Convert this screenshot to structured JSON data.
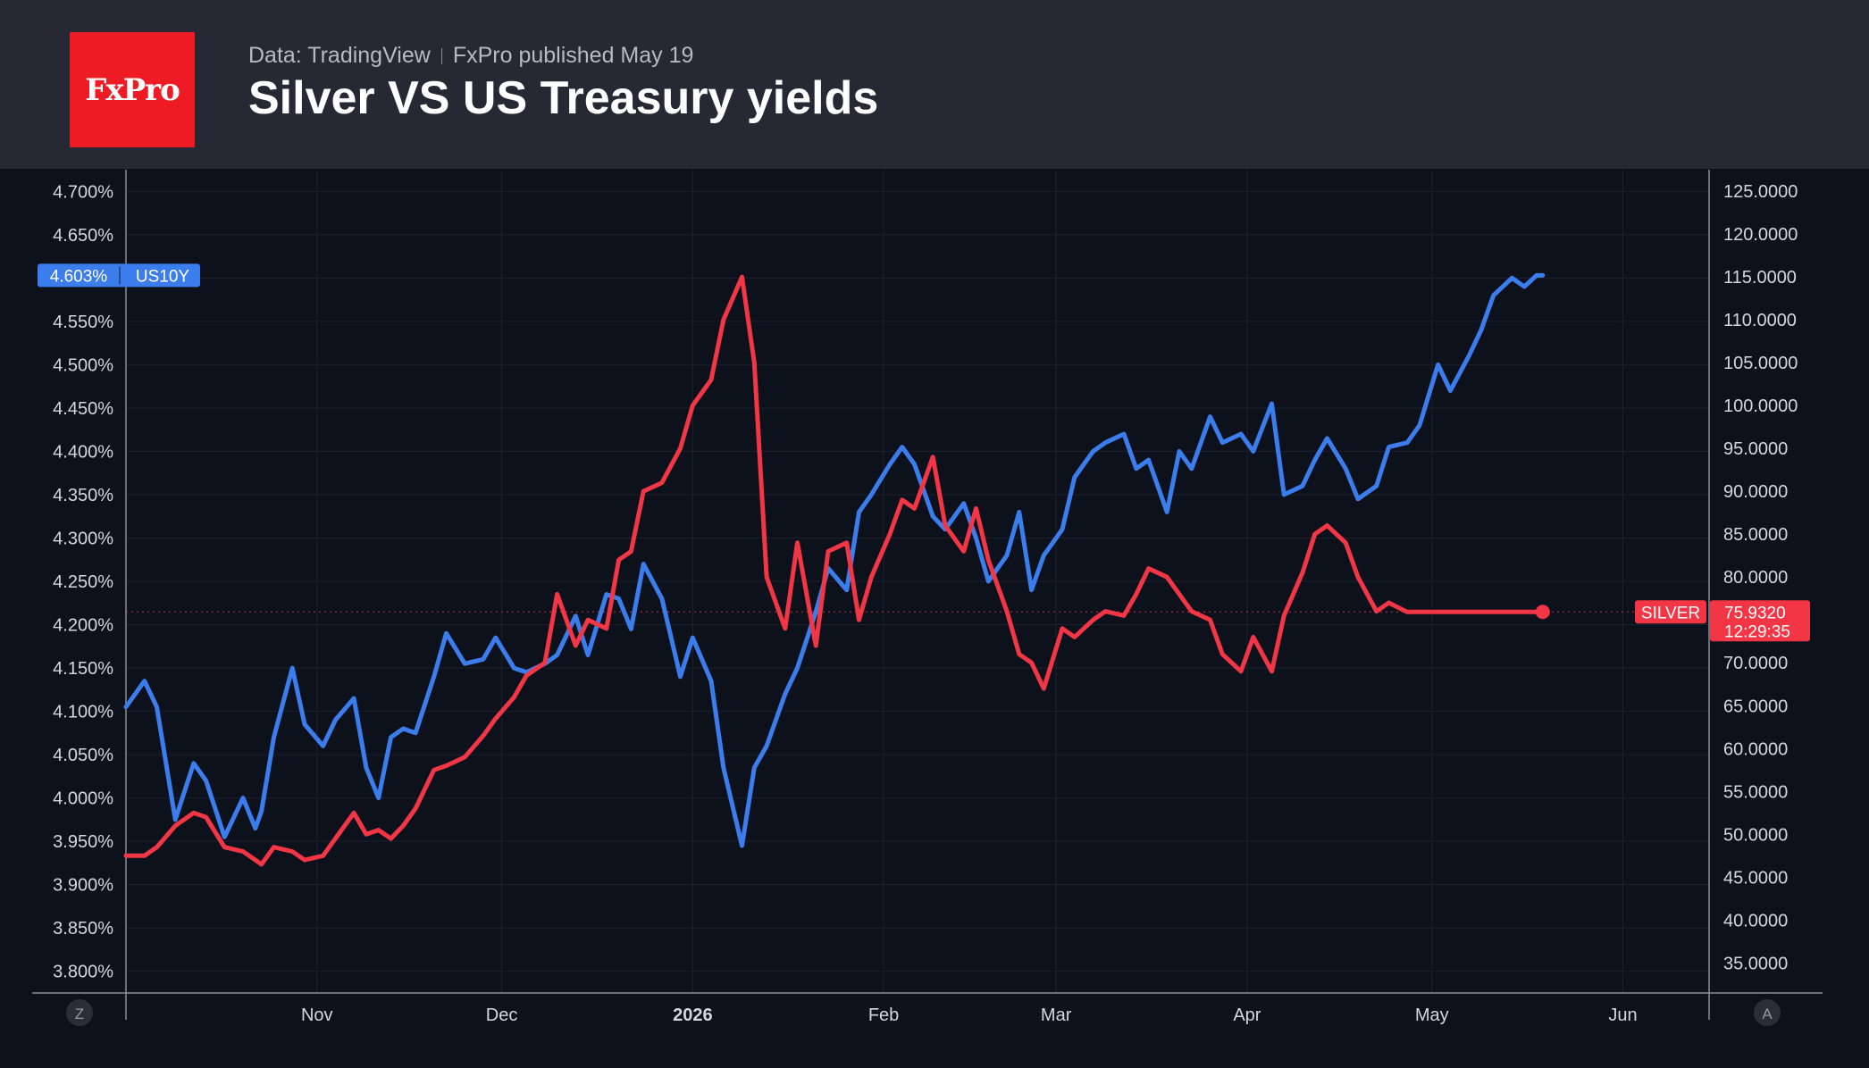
{
  "header": {
    "logo_text": "FxPro",
    "source": "Data: TradingView",
    "published": "FxPro published May 19",
    "title": "Silver VS US Treasury yields"
  },
  "corner_buttons": {
    "left": "Z",
    "right": "A"
  },
  "chart_data": {
    "type": "line",
    "title": "Silver VS US Treasury yields",
    "x_ticks": [
      {
        "label": "Nov",
        "date": "2025-11-01",
        "bold": false
      },
      {
        "label": "Dec",
        "date": "2025-12-01",
        "bold": false
      },
      {
        "label": "2026",
        "date": "2026-01-01",
        "bold": true
      },
      {
        "label": "Feb",
        "date": "2026-02-01",
        "bold": false
      },
      {
        "label": "Mar",
        "date": "2026-03-01",
        "bold": false
      },
      {
        "label": "Apr",
        "date": "2026-04-01",
        "bold": false
      },
      {
        "label": "May",
        "date": "2026-05-01",
        "bold": false
      },
      {
        "label": "Jun",
        "date": "2026-06-01",
        "bold": false
      }
    ],
    "x_range": [
      "2025-10-01",
      "2026-06-15"
    ],
    "left_axis": {
      "unit": "%",
      "range": [
        3.775,
        4.725
      ],
      "ticks": [
        "4.700%",
        "4.650%",
        "4.600%",
        "4.550%",
        "4.500%",
        "4.450%",
        "4.400%",
        "4.350%",
        "4.300%",
        "4.250%",
        "4.200%",
        "4.150%",
        "4.100%",
        "4.050%",
        "4.000%",
        "3.950%",
        "3.900%",
        "3.850%",
        "3.800%"
      ]
    },
    "right_axis": {
      "range": [
        31.5,
        127.5
      ],
      "ticks": [
        "125.0000",
        "120.0000",
        "115.0000",
        "110.0000",
        "105.0000",
        "100.0000",
        "95.0000",
        "90.0000",
        "85.0000",
        "80.0000",
        "75.0000",
        "70.0000",
        "65.0000",
        "60.0000",
        "55.0000",
        "50.0000",
        "45.0000",
        "40.0000",
        "35.0000"
      ]
    },
    "grid": true,
    "series": [
      {
        "name": "US10Y",
        "axis": "left",
        "color": "#3b7ded",
        "last_value_label": "4.603%",
        "x": [
          "2025-10-01",
          "2025-10-04",
          "2025-10-06",
          "2025-10-09",
          "2025-10-12",
          "2025-10-14",
          "2025-10-17",
          "2025-10-20",
          "2025-10-22",
          "2025-10-23",
          "2025-10-25",
          "2025-10-28",
          "2025-10-30",
          "2025-11-02",
          "2025-11-04",
          "2025-11-07",
          "2025-11-09",
          "2025-11-11",
          "2025-11-13",
          "2025-11-15",
          "2025-11-17",
          "2025-11-20",
          "2025-11-22",
          "2025-11-25",
          "2025-11-28",
          "2025-11-30",
          "2025-12-03",
          "2025-12-05",
          "2025-12-08",
          "2025-12-10",
          "2025-12-13",
          "2025-12-15",
          "2025-12-18",
          "2025-12-20",
          "2025-12-22",
          "2025-12-24",
          "2025-12-27",
          "2025-12-30",
          "2026-01-01",
          "2026-01-04",
          "2026-01-06",
          "2026-01-09",
          "2026-01-11",
          "2026-01-13",
          "2026-01-16",
          "2026-01-18",
          "2026-01-21",
          "2026-01-23",
          "2026-01-26",
          "2026-01-28",
          "2026-01-30",
          "2026-02-02",
          "2026-02-04",
          "2026-02-06",
          "2026-02-09",
          "2026-02-11",
          "2026-02-14",
          "2026-02-16",
          "2026-02-18",
          "2026-02-21",
          "2026-02-23",
          "2026-02-25",
          "2026-02-27",
          "2026-03-02",
          "2026-03-04",
          "2026-03-07",
          "2026-03-09",
          "2026-03-12",
          "2026-03-14",
          "2026-03-16",
          "2026-03-19",
          "2026-03-21",
          "2026-03-23",
          "2026-03-26",
          "2026-03-28",
          "2026-03-31",
          "2026-04-02",
          "2026-04-05",
          "2026-04-07",
          "2026-04-10",
          "2026-04-12",
          "2026-04-14",
          "2026-04-17",
          "2026-04-19",
          "2026-04-22",
          "2026-04-24",
          "2026-04-27",
          "2026-04-29",
          "2026-05-02",
          "2026-05-04",
          "2026-05-07",
          "2026-05-09",
          "2026-05-11",
          "2026-05-14",
          "2026-05-16",
          "2026-05-18",
          "2026-05-19"
        ],
        "y": [
          4.105,
          4.135,
          4.105,
          3.975,
          4.04,
          4.02,
          3.955,
          4.0,
          3.965,
          3.985,
          4.07,
          4.15,
          4.085,
          4.06,
          4.09,
          4.115,
          4.035,
          4.0,
          4.07,
          4.08,
          4.075,
          4.14,
          4.19,
          4.155,
          4.16,
          4.185,
          4.15,
          4.145,
          4.155,
          4.165,
          4.21,
          4.165,
          4.235,
          4.23,
          4.195,
          4.27,
          4.23,
          4.14,
          4.185,
          4.135,
          4.035,
          3.945,
          4.035,
          4.06,
          4.12,
          4.15,
          4.215,
          4.265,
          4.24,
          4.33,
          4.35,
          4.385,
          4.405,
          4.385,
          4.325,
          4.31,
          4.34,
          4.3,
          4.25,
          4.28,
          4.33,
          4.24,
          4.28,
          4.31,
          4.37,
          4.4,
          4.41,
          4.42,
          4.38,
          4.39,
          4.33,
          4.4,
          4.38,
          4.44,
          4.41,
          4.42,
          4.4,
          4.455,
          4.35,
          4.36,
          4.39,
          4.415,
          4.38,
          4.345,
          4.36,
          4.405,
          4.41,
          4.43,
          4.5,
          4.47,
          4.51,
          4.54,
          4.58,
          4.6,
          4.59,
          4.603,
          4.603
        ]
      },
      {
        "name": "SILVER",
        "axis": "right",
        "color": "#f23645",
        "last_value_label": "75.9320",
        "countdown": "12:29:35",
        "x": [
          "2025-10-01",
          "2025-10-04",
          "2025-10-06",
          "2025-10-09",
          "2025-10-12",
          "2025-10-14",
          "2025-10-17",
          "2025-10-20",
          "2025-10-22",
          "2025-10-23",
          "2025-10-25",
          "2025-10-28",
          "2025-10-30",
          "2025-11-02",
          "2025-11-04",
          "2025-11-07",
          "2025-11-09",
          "2025-11-11",
          "2025-11-13",
          "2025-11-15",
          "2025-11-17",
          "2025-11-20",
          "2025-11-22",
          "2025-11-25",
          "2025-11-28",
          "2025-11-30",
          "2025-12-03",
          "2025-12-05",
          "2025-12-08",
          "2025-12-10",
          "2025-12-13",
          "2025-12-15",
          "2025-12-18",
          "2025-12-20",
          "2025-12-22",
          "2025-12-24",
          "2025-12-27",
          "2025-12-30",
          "2026-01-01",
          "2026-01-04",
          "2026-01-06",
          "2026-01-09",
          "2026-01-11",
          "2026-01-13",
          "2026-01-16",
          "2026-01-18",
          "2026-01-21",
          "2026-01-23",
          "2026-01-26",
          "2026-01-28",
          "2026-01-30",
          "2026-02-02",
          "2026-02-04",
          "2026-02-06",
          "2026-02-09",
          "2026-02-11",
          "2026-02-14",
          "2026-02-16",
          "2026-02-18",
          "2026-02-21",
          "2026-02-23",
          "2026-02-25",
          "2026-02-27",
          "2026-03-02",
          "2026-03-04",
          "2026-03-07",
          "2026-03-09",
          "2026-03-12",
          "2026-03-14",
          "2026-03-16",
          "2026-03-19",
          "2026-03-21",
          "2026-03-23",
          "2026-03-26",
          "2026-03-28",
          "2026-03-31",
          "2026-04-02",
          "2026-04-05",
          "2026-04-07",
          "2026-04-10",
          "2026-04-12",
          "2026-04-14",
          "2026-04-17",
          "2026-04-19",
          "2026-04-22",
          "2026-04-24",
          "2026-04-27",
          "2026-04-29",
          "2026-05-02",
          "2026-05-04",
          "2026-05-07",
          "2026-05-09",
          "2026-05-11",
          "2026-05-14",
          "2026-05-16",
          "2026-05-18",
          "2026-05-19"
        ],
        "y": [
          47.5,
          47.5,
          48.5,
          51.0,
          52.5,
          52.0,
          48.5,
          48.0,
          47.0,
          46.5,
          48.5,
          48.0,
          47.0,
          47.5,
          49.5,
          52.5,
          50.0,
          50.5,
          49.5,
          51.0,
          53.0,
          57.5,
          58.0,
          59.0,
          61.5,
          63.5,
          66.0,
          68.5,
          70.0,
          78.0,
          72.0,
          75.0,
          74.0,
          82.0,
          83.0,
          90.0,
          91.0,
          95.0,
          100.0,
          103.0,
          110.0,
          115.0,
          105.0,
          80.0,
          74.0,
          84.0,
          72.0,
          83.0,
          84.0,
          75.0,
          80.0,
          85.0,
          89.0,
          88.0,
          94.0,
          86.0,
          83.0,
          88.0,
          82.0,
          76.0,
          71.0,
          70.0,
          67.0,
          74.0,
          73.0,
          75.0,
          76.0,
          75.5,
          78.0,
          81.0,
          80.0,
          78.0,
          76.0,
          75.0,
          71.0,
          69.0,
          73.0,
          69.0,
          75.5,
          80.5,
          85.0,
          86.0,
          84.0,
          80.0,
          76.0,
          77.0,
          75.932,
          75.932,
          75.932,
          75.932,
          75.932,
          75.932,
          75.932,
          75.932,
          75.932,
          75.932,
          75.932
        ]
      }
    ]
  }
}
